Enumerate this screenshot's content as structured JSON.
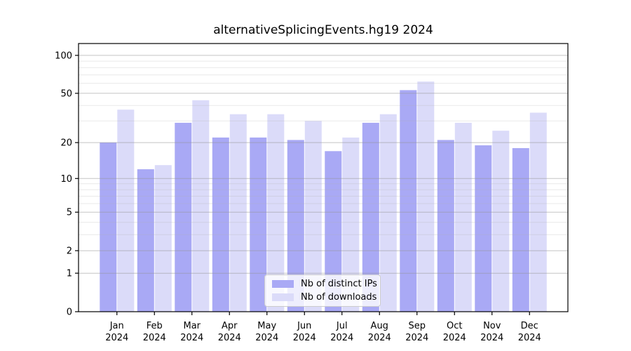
{
  "title": "alternativeSplicingEvents.hg19 2024",
  "legend": {
    "items": [
      {
        "label": "Nb of distinct IPs",
        "color": "#a9a9f5"
      },
      {
        "label": "Nb of downloads",
        "color": "#dbdbf9"
      }
    ]
  },
  "colors": {
    "background": "#ffffff",
    "axis": "#000000",
    "grid_major": "#cccccc",
    "grid_minor": "#e9e9e9",
    "text": "#000000"
  },
  "chart_data": {
    "type": "bar",
    "title": "alternativeSplicingEvents.hg19 2024",
    "categories": [
      "Jan",
      "Feb",
      "Mar",
      "Apr",
      "May",
      "Jun",
      "Jul",
      "Aug",
      "Sep",
      "Oct",
      "Nov",
      "Dec"
    ],
    "category_year_label": "2024",
    "series": [
      {
        "name": "Nb of distinct IPs",
        "color": "#a9a9f5",
        "values": [
          20,
          12,
          29,
          22,
          22,
          21,
          17,
          29,
          53,
          21,
          19,
          18
        ]
      },
      {
        "name": "Nb of downloads",
        "color": "#dbdbf9",
        "values": [
          37,
          13,
          44,
          34,
          34,
          30,
          22,
          34,
          62,
          29,
          25,
          35
        ]
      }
    ],
    "xlabel": "",
    "ylabel": "",
    "yscale": "log1p",
    "ylim": [
      0,
      124
    ],
    "yticks_major": [
      0,
      1,
      2,
      5,
      10,
      20,
      50,
      100
    ],
    "yticks_minor": [
      3,
      4,
      6,
      7,
      8,
      9,
      30,
      40,
      60,
      70,
      80,
      90
    ],
    "grid": true,
    "legend_position": "bottom-center"
  }
}
